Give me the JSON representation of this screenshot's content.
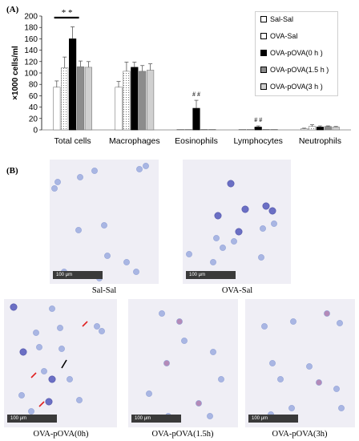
{
  "panels": {
    "a_label": "(A)",
    "b_label": "(B)"
  },
  "chart_data": {
    "type": "bar",
    "ylabel": "×1000 cells/ml",
    "ylim": [
      0,
      200
    ],
    "yticks": [
      0,
      20,
      40,
      60,
      80,
      100,
      120,
      140,
      160,
      180,
      200
    ],
    "categories": [
      "Total cells",
      "Macrophages",
      "Eosinophils",
      "Lymphocytes",
      "Neutrophils"
    ],
    "series": [
      {
        "name": "Sal-Sal",
        "color": "#ffffff",
        "pattern": "none",
        "values": [
          75,
          75,
          1,
          1,
          2
        ],
        "errors": [
          11,
          10,
          0,
          0,
          1
        ]
      },
      {
        "name": "OVA-Sal",
        "color": "#ffffff",
        "pattern": "dots",
        "values": [
          109,
          103,
          1,
          1,
          6
        ],
        "errors": [
          19,
          16,
          0,
          0,
          3
        ]
      },
      {
        "name": "OVA-pOVA(0 h )",
        "color": "#000000",
        "pattern": "none",
        "values": [
          160,
          110,
          38,
          5,
          5
        ],
        "errors": [
          21,
          9,
          14,
          2,
          2
        ]
      },
      {
        "name": "OVA-pOVA(1.5 h )",
        "color": "#8c8c8c",
        "pattern": "none",
        "values": [
          111,
          103,
          1,
          1,
          6
        ],
        "errors": [
          10,
          10,
          0,
          0,
          1
        ]
      },
      {
        "name": "OVA-pOVA(3 h )",
        "color": "#d0d0d0",
        "pattern": "none",
        "values": [
          110,
          105,
          1,
          1,
          5
        ],
        "errors": [
          10,
          11,
          0,
          0,
          1
        ]
      }
    ],
    "annotations": [
      {
        "text": "* *",
        "category": "Total cells"
      },
      {
        "text": "# #",
        "category": "Eosinophils"
      },
      {
        "text": "# #",
        "category": "Lymphocytes"
      }
    ],
    "grid": false,
    "legend_position": "right"
  },
  "micrographs": [
    {
      "caption": "Sal-Sal",
      "scale": "100 μm"
    },
    {
      "caption": "OVA-Sal",
      "scale": "100 μm"
    },
    {
      "caption": "OVA-pOVA(0h)",
      "scale": "100 μm"
    },
    {
      "caption": "OVA-pOVA(1.5h)",
      "scale": "100 μm"
    },
    {
      "caption": "OVA-pOVA(3h)",
      "scale": "100 μm"
    }
  ]
}
